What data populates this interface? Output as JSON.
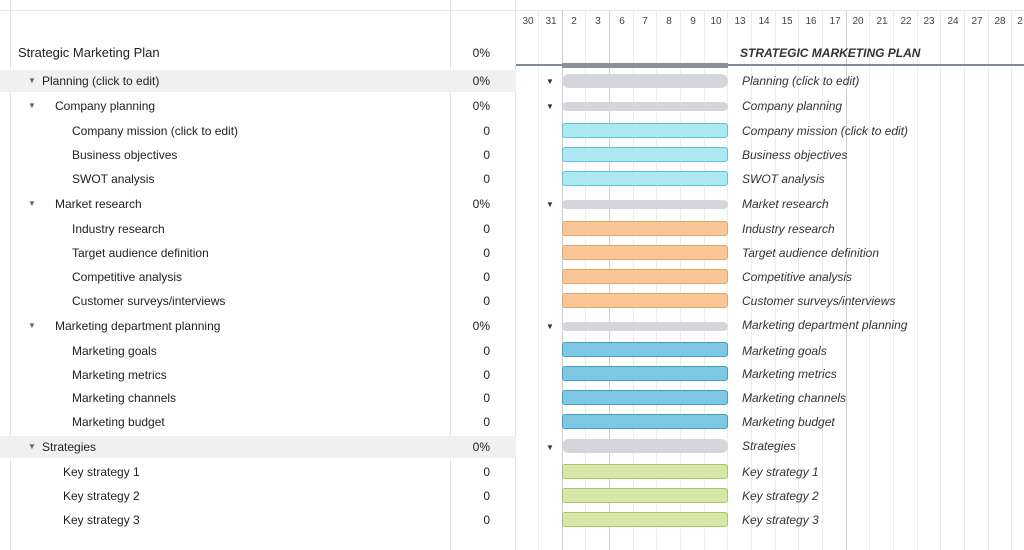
{
  "plan_title": "Strategic Marketing Plan",
  "plan_progress": "0%",
  "chart_title": "STRATEGIC MARKETING PLAN",
  "days": [
    "30",
    "31",
    "2",
    "3",
    "6",
    "7",
    "8",
    "9",
    "10",
    "13",
    "14",
    "15",
    "16",
    "17",
    "20",
    "21",
    "22",
    "23",
    "24",
    "27",
    "28",
    "2"
  ],
  "colors": {
    "light_blue": "#aee8f3",
    "orange": "#f9c697",
    "blue": "#7ec8e6",
    "green": "#d5e8a7",
    "summary": "#d4d6db"
  },
  "rows": [
    {
      "name": "Planning (click to edit)",
      "progress": "0%",
      "gantt_label": "Planning (click to edit)"
    },
    {
      "name": "Company planning",
      "progress": "0%",
      "gantt_label": "Company planning"
    },
    {
      "name": "Company mission (click to edit)",
      "progress": "0",
      "gantt_label": "Company mission (click to edit)"
    },
    {
      "name": "Business objectives",
      "progress": "0",
      "gantt_label": "Business objectives"
    },
    {
      "name": "SWOT analysis",
      "progress": "0",
      "gantt_label": "SWOT analysis"
    },
    {
      "name": "Market research",
      "progress": "0%",
      "gantt_label": "Market research"
    },
    {
      "name": "Industry research",
      "progress": "0",
      "gantt_label": "Industry research"
    },
    {
      "name": "Target audience definition",
      "progress": "0",
      "gantt_label": "Target audience definition"
    },
    {
      "name": "Competitive analysis",
      "progress": "0",
      "gantt_label": "Competitive analysis"
    },
    {
      "name": "Customer surveys/interviews",
      "progress": "0",
      "gantt_label": "Customer surveys/interviews"
    },
    {
      "name": "Marketing department planning",
      "progress": "0%",
      "gantt_label": "Marketing department planning"
    },
    {
      "name": "Marketing goals",
      "progress": "0",
      "gantt_label": "Marketing goals"
    },
    {
      "name": "Marketing metrics",
      "progress": "0",
      "gantt_label": "Marketing metrics"
    },
    {
      "name": "Marketing channels",
      "progress": "0",
      "gantt_label": "Marketing channels"
    },
    {
      "name": "Marketing budget",
      "progress": "0",
      "gantt_label": "Marketing budget"
    },
    {
      "name": "Strategies",
      "progress": "0%",
      "gantt_label": "Strategies"
    },
    {
      "name": "Key strategy 1",
      "progress": "0",
      "gantt_label": "Key strategy 1"
    },
    {
      "name": "Key strategy 2",
      "progress": "0",
      "gantt_label": "Key strategy 2"
    },
    {
      "name": "Key strategy 3",
      "progress": "0",
      "gantt_label": "Key strategy 3"
    }
  ]
}
